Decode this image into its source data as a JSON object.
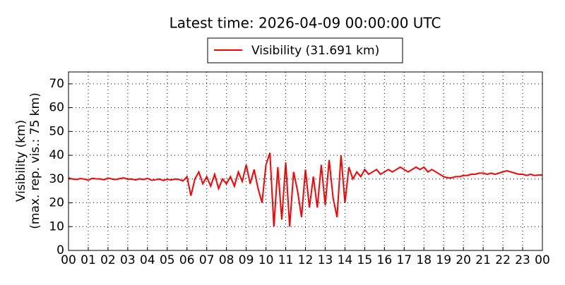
{
  "chart_data": {
    "type": "line",
    "title": "Latest time: 2026-04-09 00:00:00 UTC",
    "ylabel": [
      "Visibility (km)",
      "(max. rep. vis.: 75 km)"
    ],
    "grid": true,
    "legend": "top",
    "xlim": [
      0,
      24
    ],
    "ylim": [
      0,
      75
    ],
    "yticks": [
      0,
      10,
      20,
      30,
      40,
      50,
      60,
      70
    ],
    "xticks": [
      {
        "value": 0,
        "label": "00"
      },
      {
        "value": 1,
        "label": "01"
      },
      {
        "value": 2,
        "label": "02"
      },
      {
        "value": 3,
        "label": "03"
      },
      {
        "value": 4,
        "label": "04"
      },
      {
        "value": 5,
        "label": "05"
      },
      {
        "value": 6,
        "label": "06"
      },
      {
        "value": 7,
        "label": "07"
      },
      {
        "value": 8,
        "label": "08"
      },
      {
        "value": 9,
        "label": "09"
      },
      {
        "value": 10,
        "label": "10"
      },
      {
        "value": 11,
        "label": "11"
      },
      {
        "value": 12,
        "label": "12"
      },
      {
        "value": 13,
        "label": "13"
      },
      {
        "value": 14,
        "label": "14"
      },
      {
        "value": 15,
        "label": "15"
      },
      {
        "value": 16,
        "label": "16"
      },
      {
        "value": 17,
        "label": "17"
      },
      {
        "value": 18,
        "label": "18"
      },
      {
        "value": 19,
        "label": "19"
      },
      {
        "value": 20,
        "label": "20"
      },
      {
        "value": 21,
        "label": "21"
      },
      {
        "value": 22,
        "label": "22"
      },
      {
        "value": 23,
        "label": "23"
      },
      {
        "value": 24,
        "label": "00"
      }
    ],
    "x": [
      0,
      0.2,
      0.4,
      0.6,
      0.8,
      1,
      1.2,
      1.4,
      1.6,
      1.8,
      2,
      2.2,
      2.4,
      2.6,
      2.8,
      3,
      3.2,
      3.4,
      3.6,
      3.8,
      4,
      4.2,
      4.4,
      4.6,
      4.8,
      5,
      5.2,
      5.4,
      5.6,
      5.8,
      6,
      6.2,
      6.4,
      6.6,
      6.8,
      7,
      7.2,
      7.4,
      7.6,
      7.8,
      8,
      8.2,
      8.4,
      8.6,
      8.8,
      9,
      9.2,
      9.4,
      9.6,
      9.8,
      10,
      10.2,
      10.4,
      10.6,
      10.8,
      11,
      11.2,
      11.4,
      11.6,
      11.8,
      12,
      12.2,
      12.4,
      12.6,
      12.8,
      13,
      13.2,
      13.4,
      13.6,
      13.8,
      14,
      14.2,
      14.4,
      14.6,
      14.8,
      15,
      15.2,
      15.4,
      15.6,
      15.8,
      16,
      16.2,
      16.4,
      16.6,
      16.8,
      17,
      17.2,
      17.4,
      17.6,
      17.8,
      18,
      18.2,
      18.4,
      18.6,
      18.8,
      19,
      19.2,
      19.4,
      19.6,
      19.8,
      20,
      20.2,
      20.4,
      20.6,
      20.8,
      21,
      21.2,
      21.4,
      21.6,
      21.8,
      22,
      22.2,
      22.4,
      22.6,
      22.8,
      23,
      23.2,
      23.4,
      23.6,
      23.8,
      24
    ],
    "series": [
      {
        "name": "Visibility (31.691 km)",
        "color": "#ff0000",
        "values": [
          30.5,
          30,
          29.8,
          30.2,
          30,
          29.5,
          30.3,
          30.1,
          30,
          29.7,
          30.4,
          30,
          29.8,
          30.2,
          30.5,
          29.9,
          30,
          29.6,
          30.1,
          29.8,
          30.3,
          29.5,
          29.7,
          30,
          29.4,
          29.9,
          29.6,
          30,
          29.8,
          29.2,
          31,
          23,
          30,
          33,
          28,
          31,
          27,
          32,
          26,
          30,
          28,
          31,
          27,
          33,
          29,
          36,
          28,
          34,
          26,
          20,
          36,
          41,
          10,
          35,
          13,
          37,
          10,
          33,
          25,
          14,
          34,
          18,
          31,
          18,
          36,
          19,
          38,
          22,
          14,
          40,
          20,
          35,
          30,
          33,
          31,
          34,
          32,
          33,
          34,
          32,
          33,
          34,
          33,
          34,
          35,
          34,
          33,
          34,
          35,
          34,
          35,
          33,
          34,
          33,
          32,
          31,
          30.5,
          30.5,
          31,
          31,
          31.5,
          31.5,
          32,
          32,
          32.5,
          32.5,
          32,
          32.5,
          32,
          32.5,
          33,
          33.5,
          33,
          32.5,
          32,
          32,
          31.5,
          32,
          31.5,
          31.7,
          31.691
        ]
      }
    ]
  }
}
